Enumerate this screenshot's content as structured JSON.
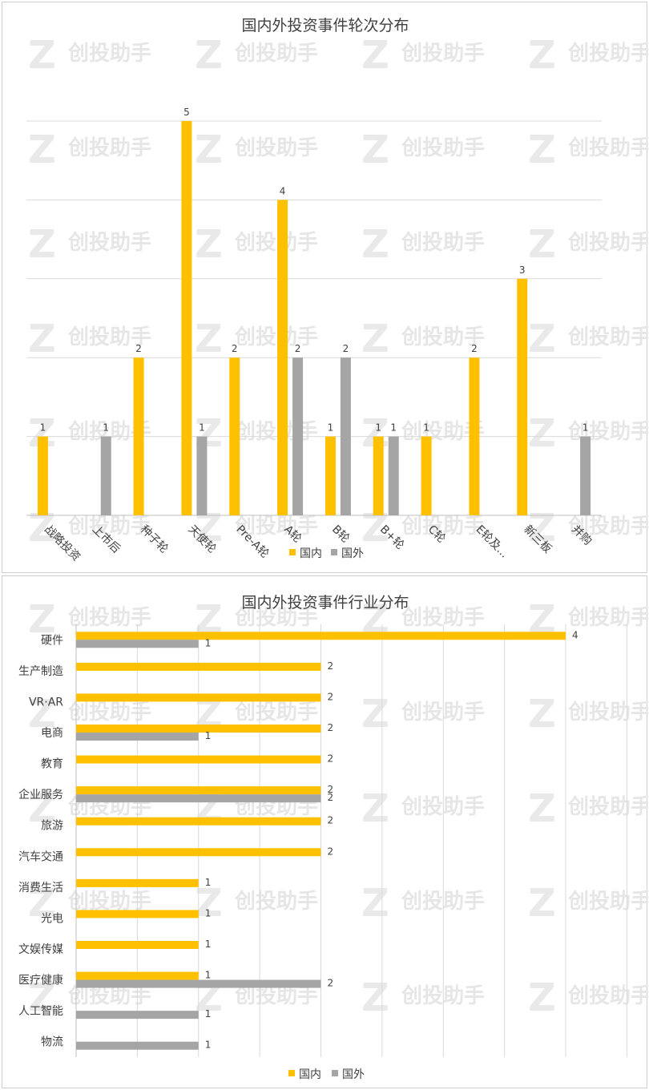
{
  "colors": {
    "domestic": "#FFC000",
    "foreign": "#A5A5A5",
    "grid": "#D9D9D9"
  },
  "watermark": "创投助手",
  "chart_data": [
    {
      "type": "bar",
      "orientation": "vertical",
      "title": "国内外投资事件轮次分布",
      "categories": [
        "战略投资",
        "上市后",
        "种子轮",
        "天使轮",
        "Pre-A轮",
        "A轮",
        "B轮",
        "B+轮",
        "C轮",
        "E轮及...",
        "新三板",
        "并购"
      ],
      "series": [
        {
          "name": "国内",
          "values": [
            1,
            null,
            2,
            5,
            2,
            4,
            1,
            1,
            1,
            2,
            3,
            null
          ]
        },
        {
          "name": "国外",
          "values": [
            null,
            1,
            null,
            1,
            null,
            2,
            2,
            1,
            null,
            null,
            null,
            1
          ]
        }
      ],
      "ylim": [
        0,
        5
      ],
      "grid": true,
      "legend": "bottom"
    },
    {
      "type": "bar",
      "orientation": "horizontal",
      "title": "国内外投资事件行业分布",
      "categories": [
        "硬件",
        "生产制造",
        "VR·AR",
        "电商",
        "教育",
        "企业服务",
        "旅游",
        "汽车交通",
        "消费生活",
        "光电",
        "文娱传媒",
        "医疗健康",
        "人工智能",
        "物流"
      ],
      "series": [
        {
          "name": "国内",
          "values": [
            4,
            2,
            2,
            2,
            2,
            2,
            2,
            2,
            1,
            1,
            1,
            1,
            null,
            null
          ]
        },
        {
          "name": "国外",
          "values": [
            1,
            null,
            null,
            1,
            null,
            2,
            null,
            null,
            null,
            null,
            null,
            2,
            1,
            1
          ]
        }
      ],
      "xlim": [
        0,
        4
      ],
      "grid": true,
      "legend": "bottom"
    }
  ]
}
